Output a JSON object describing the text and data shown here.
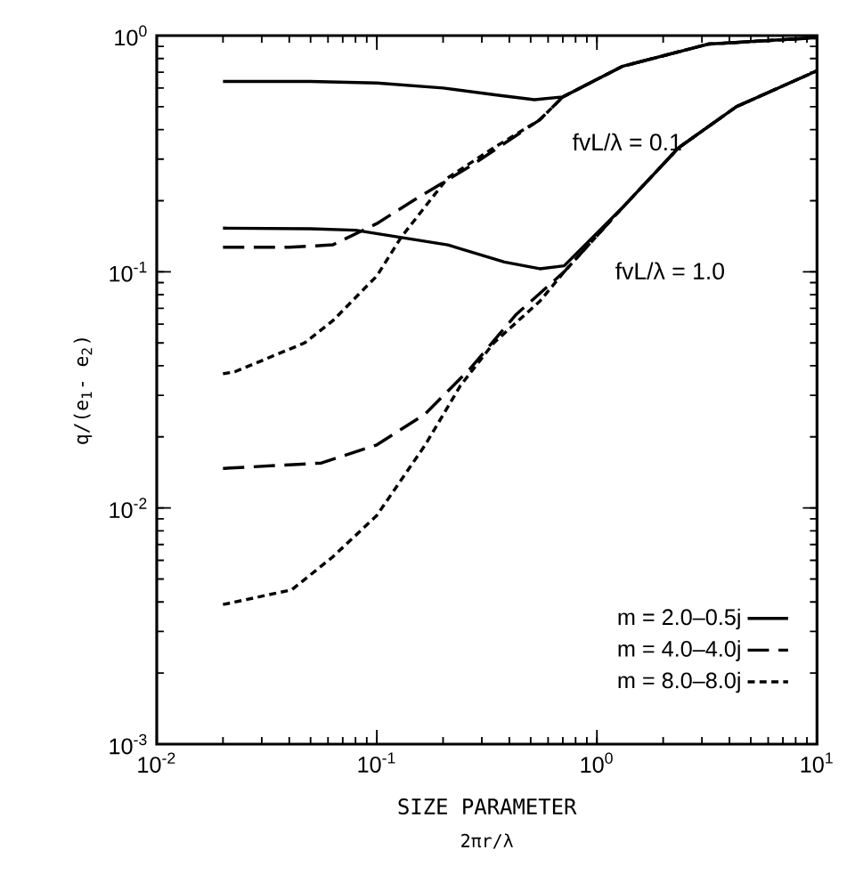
{
  "chart_data": {
    "type": "line",
    "xlabel": "SIZE PARAMETER",
    "ylabel": "q/(e$_{1}$- e$_{2}$)",
    "log": "xy",
    "grid": false,
    "legend": "bottom right",
    "marker": "none",
    "xlim": [
      0.01,
      10
    ],
    "ylim": [
      0.001,
      1
    ],
    "xticks": [
      {
        "value": 0.01,
        "label": "10$^{-2}$"
      },
      {
        "value": 0.1,
        "label": "10$^{-1}$"
      },
      {
        "value": 1,
        "label": "10$^{0}$"
      },
      {
        "value": 10,
        "label": "10$^{1}$"
      }
    ],
    "yticks": [
      {
        "value": 0.001,
        "label": "10$^{-3}$"
      },
      {
        "value": 0.01,
        "label": "10$^{-2}$"
      },
      {
        "value": 0.1,
        "label": "10$^{-1}$"
      },
      {
        "value": 1,
        "label": "10$^{0}$"
      }
    ],
    "annotations": [
      "fvL/λ = 0.1",
      "fvL/λ = 1.0",
      "2πr/λ"
    ],
    "series": [
      {
        "name": "m = 2.0–0.5j",
        "color": "#000000",
        "line_style": "solid",
        "x": [
          0.02,
          0.05,
          0.1,
          0.2,
          0.35,
          0.52,
          0.7,
          1.3,
          3.2,
          10
        ],
        "values": [
          0.64,
          0.64,
          0.63,
          0.6,
          0.56,
          0.535,
          0.55,
          0.74,
          0.92,
          0.98
        ]
      },
      {
        "name": "m = 4.0–4.0j",
        "color": "#000000",
        "line_style": "dashed",
        "x": [
          0.02,
          0.04,
          0.063,
          0.1,
          0.146,
          0.266,
          0.55,
          0.7,
          1.3,
          3.2,
          10
        ],
        "values": [
          0.127,
          0.127,
          0.13,
          0.16,
          0.2,
          0.28,
          0.44,
          0.55,
          0.74,
          0.92,
          0.98
        ]
      },
      {
        "name": "m = 8.0–8.0j",
        "color": "#000000",
        "line_style": "dotted",
        "x": [
          0.02,
          0.0226,
          0.047,
          0.063,
          0.1,
          0.129,
          0.21,
          0.34,
          0.55,
          0.7,
          1.3,
          3.2,
          10
        ],
        "values": [
          0.037,
          0.0377,
          0.05,
          0.062,
          0.096,
          0.14,
          0.25,
          0.335,
          0.44,
          0.55,
          0.74,
          0.92,
          0.98
        ]
      },
      {
        "color": "#000000",
        "line_style": "solid",
        "x": [
          0.02,
          0.05,
          0.08,
          0.21,
          0.38,
          0.55,
          0.71,
          1.3,
          2.35,
          4.3,
          10
        ],
        "values": [
          0.153,
          0.152,
          0.15,
          0.13,
          0.11,
          0.103,
          0.106,
          0.186,
          0.335,
          0.5,
          0.71
        ]
      },
      {
        "color": "#000000",
        "line_style": "dashed",
        "x": [
          0.02,
          0.056,
          0.1,
          0.166,
          0.266,
          0.43,
          0.71,
          1.3,
          2.35,
          4.3,
          10
        ],
        "values": [
          0.0147,
          0.0155,
          0.0185,
          0.025,
          0.039,
          0.066,
          0.1,
          0.186,
          0.335,
          0.5,
          0.71
        ]
      },
      {
        "color": "#000000",
        "line_style": "dotted",
        "x": [
          0.02,
          0.041,
          0.063,
          0.1,
          0.166,
          0.24,
          0.34,
          0.55,
          0.71,
          1.3,
          2.35,
          4.3,
          10
        ],
        "values": [
          0.0039,
          0.0045,
          0.0062,
          0.0093,
          0.0185,
          0.033,
          0.05,
          0.075,
          0.1,
          0.186,
          0.335,
          0.5,
          0.71
        ]
      }
    ]
  }
}
